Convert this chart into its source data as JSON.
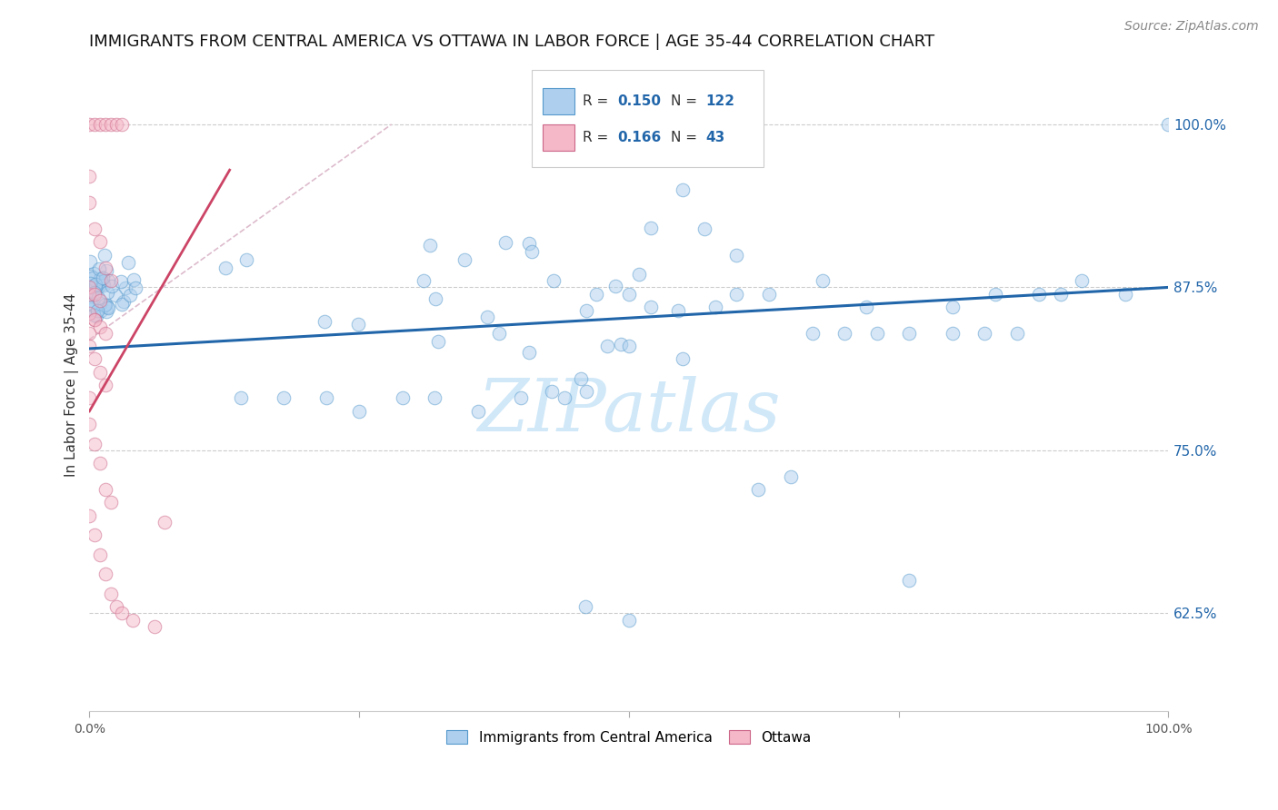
{
  "title": "IMMIGRANTS FROM CENTRAL AMERICA VS OTTAWA IN LABOR FORCE | AGE 35-44 CORRELATION CHART",
  "source": "Source: ZipAtlas.com",
  "ylabel": "In Labor Force | Age 35-44",
  "ytick_labels": [
    "62.5%",
    "75.0%",
    "87.5%",
    "100.0%"
  ],
  "ytick_values": [
    0.625,
    0.75,
    0.875,
    1.0
  ],
  "xlim": [
    0.0,
    1.0
  ],
  "ylim": [
    0.55,
    1.05
  ],
  "legend_blue_r": "0.150",
  "legend_blue_n": "122",
  "legend_pink_r": "0.166",
  "legend_pink_n": "43",
  "blue_fill": "#aecfee",
  "blue_edge": "#5599cc",
  "pink_fill": "#f4b8c8",
  "pink_edge": "#cc6688",
  "blue_line_color": "#2266aa",
  "pink_line_color": "#cc4466",
  "dashed_line_color": "#ddbbcc",
  "watermark": "ZIPatlas",
  "watermark_color": "#d0e8f8",
  "legend_label_blue": "Immigrants from Central America",
  "legend_label_pink": "Ottawa",
  "title_fontsize": 13,
  "source_fontsize": 10,
  "blue_trend": [
    0.0,
    0.828,
    1.0,
    0.875
  ],
  "pink_trend": [
    0.0,
    0.78,
    0.13,
    0.965
  ],
  "pink_dashed": [
    0.0,
    0.835,
    0.28,
    1.0
  ]
}
